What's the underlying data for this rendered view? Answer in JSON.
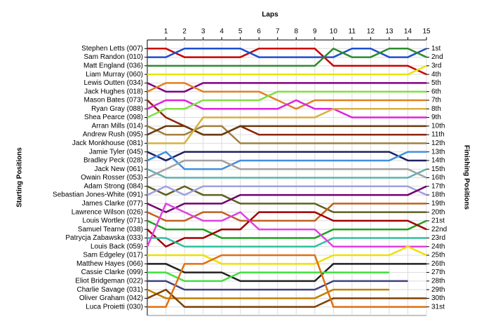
{
  "chart_data": {
    "type": "lap",
    "title": "Laps",
    "ylabel": "Starting Positions",
    "y2label": "Finishing Positions",
    "xlim": [
      0,
      15
    ],
    "xticks": [
      1,
      2,
      3,
      4,
      5,
      6,
      7,
      8,
      9,
      10,
      11,
      12,
      13,
      14,
      15
    ],
    "ylim": [
      0,
      32
    ],
    "grid": true,
    "finish_labels": [
      "1st",
      "2nd",
      "3rd",
      "4th",
      "5th",
      "6th",
      "7th",
      "8th",
      "9th",
      "10th",
      "11th",
      "12th",
      "13th",
      "14th",
      "15th",
      "16th",
      "17th",
      "18th",
      "19th",
      "20th",
      "21st",
      "22nd",
      "23rd",
      "24th",
      "25th",
      "26th",
      "27th",
      "28th",
      "29th",
      "30th",
      "31st"
    ],
    "series": [
      {
        "name": "Stephen Letts (007)",
        "color": "#cc0000",
        "values": [
          1,
          1,
          2,
          2,
          2,
          2,
          1,
          1,
          1,
          1,
          3,
          3,
          3,
          3,
          3,
          4
        ]
      },
      {
        "name": "Sam Randon (010)",
        "color": "#1f4fd0",
        "values": [
          2,
          2,
          1,
          1,
          1,
          1,
          2,
          2,
          2,
          2,
          2,
          1,
          1,
          2,
          2,
          1
        ]
      },
      {
        "name": "Matt England (036)",
        "color": "#2e8b2e",
        "values": [
          3,
          3,
          3,
          3,
          3,
          3,
          3,
          3,
          3,
          3,
          1,
          2,
          2,
          1,
          1,
          2
        ]
      },
      {
        "name": "Liam Murray (060)",
        "color": "#e6e600",
        "values": [
          4,
          4,
          4,
          4,
          4,
          4,
          4,
          4,
          4,
          4,
          4,
          4,
          4,
          4,
          4,
          3
        ]
      },
      {
        "name": "Lewis Outten (034)",
        "color": "#800080",
        "values": [
          5,
          6,
          6,
          5,
          5,
          5,
          5,
          5,
          5,
          5,
          5,
          5,
          5,
          5,
          5,
          5
        ]
      },
      {
        "name": "Jack Hughes (018)",
        "color": "#e08020",
        "values": [
          6,
          5,
          5,
          6,
          6,
          6,
          6,
          7,
          8,
          7,
          7,
          7,
          7,
          7,
          7,
          7
        ]
      },
      {
        "name": "Mason Bates (073)",
        "color": "#8b2500",
        "values": [
          7,
          9,
          10,
          11,
          11,
          10,
          11,
          11,
          11,
          11,
          11,
          11,
          11,
          11,
          11,
          11
        ]
      },
      {
        "name": "Ryan Gray (088)",
        "color": "#e020e0",
        "values": [
          8,
          7,
          7,
          8,
          8,
          8,
          8,
          8,
          7,
          8,
          8,
          9,
          9,
          9,
          9,
          9
        ]
      },
      {
        "name": "Shea Pearce (098)",
        "color": "#80e040",
        "values": [
          9,
          8,
          8,
          7,
          7,
          7,
          7,
          6,
          6,
          6,
          6,
          6,
          6,
          6,
          6,
          6
        ]
      },
      {
        "name": "Arran Mills (014)",
        "color": "#a08040",
        "values": [
          10,
          11,
          11,
          10,
          10,
          12,
          12,
          12,
          12,
          12,
          12,
          12,
          12,
          12,
          12,
          12
        ]
      },
      {
        "name": "Andrew Rush (095)",
        "color": "#6b3a10",
        "values": [
          11,
          10,
          10,
          11,
          11,
          10,
          10,
          10,
          10,
          10,
          10,
          10,
          10,
          10,
          10,
          10
        ]
      },
      {
        "name": "Jack Monkhouse (081)",
        "color": "#d8b040",
        "values": [
          12,
          12,
          12,
          9,
          9,
          9,
          9,
          9,
          9,
          9,
          8,
          8,
          8,
          8,
          8,
          8
        ]
      },
      {
        "name": "Jamie Tyler (045)",
        "color": "#202060",
        "values": [
          13,
          14,
          13,
          13,
          13,
          13,
          13,
          13,
          13,
          13,
          13,
          13,
          13,
          13,
          14,
          14
        ]
      },
      {
        "name": "Bradley Peck (028)",
        "color": "#4090e0",
        "values": [
          14,
          13,
          15,
          15,
          15,
          14,
          14,
          14,
          14,
          14,
          14,
          14,
          14,
          14,
          13,
          13
        ]
      },
      {
        "name": "Jack New (061)",
        "color": "#60b0b0",
        "values": [
          15,
          16,
          16,
          16,
          16,
          16,
          16,
          16,
          16,
          16,
          16,
          16,
          16,
          16,
          16,
          15
        ]
      },
      {
        "name": "Owain Rosser (053)",
        "color": "#a0a0a0",
        "values": [
          16,
          15,
          14,
          14,
          14,
          15,
          15,
          15,
          15,
          15,
          15,
          15,
          15,
          15,
          15,
          16
        ]
      },
      {
        "name": "Adam Strong (084)",
        "color": "#606020",
        "values": [
          17,
          18,
          17,
          18,
          18,
          19,
          19,
          19,
          19,
          19,
          20,
          20,
          20,
          20,
          20,
          20
        ]
      },
      {
        "name": "Sebastian Jones-White (091)",
        "color": "#a0a0e0",
        "values": [
          18,
          17,
          18,
          17,
          17,
          17,
          17,
          17,
          17,
          17,
          17,
          17,
          17,
          17,
          17,
          18
        ]
      },
      {
        "name": "James Clarke (077)",
        "color": "#700070",
        "values": [
          19,
          20,
          19,
          19,
          19,
          18,
          18,
          18,
          18,
          18,
          18,
          18,
          18,
          18,
          18,
          17
        ]
      },
      {
        "name": "Lawrence Wilson (026)",
        "color": "#c06020",
        "values": [
          20,
          21,
          21,
          20,
          20,
          21,
          21,
          21,
          21,
          21,
          19,
          19,
          19,
          19,
          19,
          19
        ]
      },
      {
        "name": "Louis Wortley (071)",
        "color": "#20a020",
        "values": [
          21,
          22,
          22,
          22,
          23,
          23,
          23,
          23,
          23,
          23,
          22,
          22,
          22,
          22,
          22,
          21
        ]
      },
      {
        "name": "Samuel Tearne (038)",
        "color": "#a00000",
        "values": [
          22,
          24,
          23,
          23,
          22,
          22,
          20,
          20,
          20,
          20,
          21,
          21,
          21,
          21,
          21,
          22
        ]
      },
      {
        "name": "Patrycja Zabawska (033)",
        "color": "#30c0a0",
        "values": [
          23,
          23,
          24,
          24,
          24,
          24,
          24,
          24,
          24,
          24,
          23,
          23,
          23,
          23,
          23,
          23
        ]
      },
      {
        "name": "Louis Back (059)",
        "color": "#e040e0",
        "values": [
          24,
          19,
          20,
          21,
          21,
          20,
          22,
          22,
          22,
          22,
          24,
          24,
          24,
          24,
          24,
          24
        ]
      },
      {
        "name": "Sam Edgeley (017)",
        "color": "#f0e000",
        "values": [
          25,
          25,
          25,
          25,
          26,
          26,
          26,
          26,
          26,
          26,
          25,
          25,
          25,
          25,
          24,
          25
        ]
      },
      {
        "name": "Matthew Hayes (066)",
        "color": "#202020",
        "values": [
          26,
          26,
          27,
          27,
          27,
          28,
          28,
          28,
          28,
          28,
          26,
          26,
          26,
          26,
          26,
          26
        ]
      },
      {
        "name": "Cassie Clarke (099)",
        "color": "#40e040",
        "values": [
          27,
          27,
          28,
          28,
          28,
          27,
          27,
          27,
          27,
          27,
          27,
          27,
          27,
          27,
          null,
          null
        ]
      },
      {
        "name": "Eliot Bridgeman (022)",
        "color": "#404080",
        "values": [
          28,
          28,
          29,
          29,
          29,
          29,
          29,
          29,
          29,
          29,
          28,
          28,
          28,
          28,
          28,
          null
        ]
      },
      {
        "name": "Charlie Savage (031)",
        "color": "#c08000",
        "values": [
          29,
          30,
          30,
          30,
          30,
          30,
          30,
          30,
          30,
          30,
          29,
          29,
          29,
          29,
          null,
          null
        ]
      },
      {
        "name": "Oliver Graham (042)",
        "color": "#804000",
        "values": [
          30,
          29,
          31,
          31,
          31,
          31,
          31,
          31,
          31,
          31,
          30,
          30,
          30,
          30,
          30,
          30
        ]
      },
      {
        "name": "Luca Proietti (030)",
        "color": "#e07010",
        "values": [
          31,
          31,
          26,
          26,
          25,
          25,
          25,
          25,
          25,
          25,
          31,
          31,
          31,
          31,
          31,
          31
        ]
      }
    ]
  }
}
